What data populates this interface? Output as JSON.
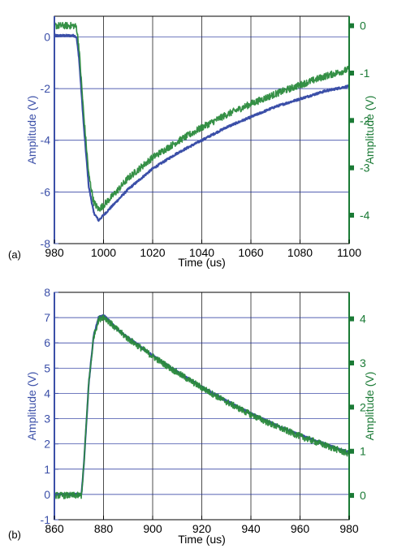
{
  "colors": {
    "left_axis": "#3b4fa8",
    "right_axis": "#1a7a35",
    "series_blue": "#3b4fa8",
    "series_green": "#2a8a3c",
    "grid_vertical": "#000000",
    "grid_horizontal": "#1c2c99"
  },
  "chart_data": [
    {
      "type": "line",
      "panel_label": "(a)",
      "title": "",
      "xlabel": "Time (us)",
      "ylabel": "Amplitude (V)",
      "ylabel_right": "Amplitude (V)",
      "xlim": [
        980,
        1100
      ],
      "ylim": [
        -8,
        0.8
      ],
      "ylim_right": [
        -4.6,
        0.2
      ],
      "xticks": [
        980,
        1000,
        1020,
        1040,
        1060,
        1080,
        1100
      ],
      "yticks": [
        -8,
        -6,
        -4,
        -2,
        0
      ],
      "yticks_right": [
        -4,
        -3,
        -2,
        -1,
        0
      ],
      "grid": true,
      "series": [
        {
          "axis": "left",
          "color_key": "series_blue",
          "x": [
            980,
            984,
            988,
            989,
            990,
            992,
            994,
            996,
            998,
            1000,
            1005,
            1010,
            1015,
            1020,
            1030,
            1040,
            1050,
            1060,
            1070,
            1080,
            1090,
            1100
          ],
          "y": [
            0.05,
            0.05,
            0.05,
            0.0,
            -0.8,
            -3.5,
            -5.8,
            -6.8,
            -7.1,
            -6.9,
            -6.4,
            -5.9,
            -5.5,
            -5.1,
            -4.5,
            -4.0,
            -3.5,
            -3.1,
            -2.7,
            -2.4,
            -2.1,
            -1.9
          ]
        },
        {
          "axis": "right",
          "color_key": "series_green",
          "x": [
            980,
            984,
            988,
            989,
            990,
            992,
            994,
            996,
            998,
            1000,
            1005,
            1010,
            1015,
            1020,
            1030,
            1040,
            1050,
            1060,
            1070,
            1080,
            1090,
            1100
          ],
          "y": [
            0.0,
            0.0,
            0.0,
            -0.03,
            -0.45,
            -1.92,
            -3.15,
            -3.72,
            -3.88,
            -3.79,
            -3.52,
            -3.22,
            -3.0,
            -2.78,
            -2.45,
            -2.15,
            -1.88,
            -1.65,
            -1.44,
            -1.25,
            -1.07,
            -0.92
          ]
        }
      ]
    },
    {
      "type": "line",
      "panel_label": "(b)",
      "title": "",
      "xlabel": "Time (us)",
      "ylabel": "Amplitude (V)",
      "ylabel_right": "Amplitude (V)",
      "xlim": [
        860,
        980
      ],
      "ylim": [
        -1,
        8
      ],
      "ylim_right": [
        -0.55,
        4.6
      ],
      "xticks": [
        860,
        880,
        900,
        920,
        940,
        960,
        980
      ],
      "yticks": [
        -1,
        0,
        1,
        2,
        3,
        4,
        5,
        6,
        7,
        8
      ],
      "yticks_right": [
        0,
        1,
        2,
        3,
        4
      ],
      "grid": true,
      "series": [
        {
          "axis": "left",
          "color_key": "series_blue",
          "x": [
            860,
            865,
            870,
            871,
            872,
            874,
            876,
            878,
            880,
            882,
            885,
            890,
            900,
            910,
            920,
            930,
            940,
            950,
            960,
            970,
            980
          ],
          "y": [
            0.0,
            0.0,
            0.0,
            0.0,
            1.2,
            4.4,
            6.3,
            7.0,
            7.1,
            6.9,
            6.6,
            6.2,
            5.5,
            4.85,
            4.25,
            3.7,
            3.2,
            2.75,
            2.35,
            2.0,
            1.65
          ]
        },
        {
          "axis": "right",
          "color_key": "series_green",
          "x": [
            860,
            865,
            870,
            871,
            872,
            874,
            876,
            878,
            880,
            882,
            885,
            890,
            900,
            910,
            920,
            930,
            940,
            950,
            960,
            970,
            980
          ],
          "y": [
            0.0,
            0.0,
            0.0,
            0.0,
            0.7,
            2.55,
            3.6,
            3.98,
            4.05,
            3.95,
            3.78,
            3.55,
            3.15,
            2.78,
            2.44,
            2.12,
            1.83,
            1.57,
            1.34,
            1.14,
            0.94
          ]
        }
      ]
    }
  ]
}
